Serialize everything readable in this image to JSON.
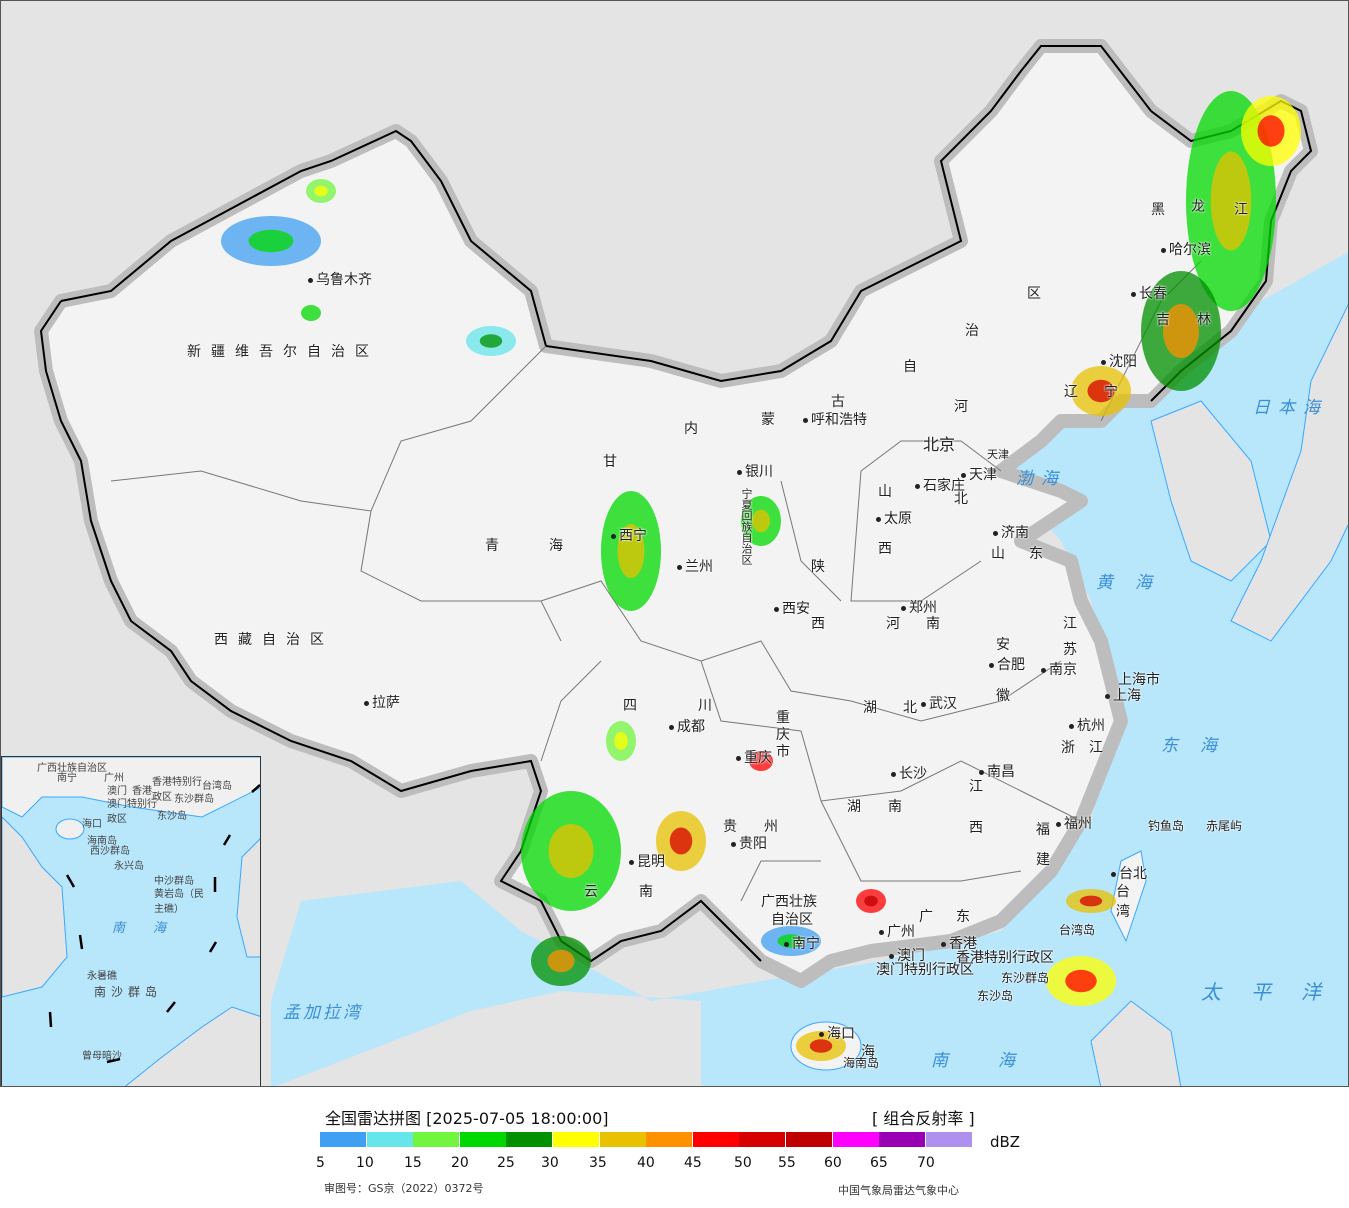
{
  "legend": {
    "title": "全国雷达拼图 [2025-07-05 18:00:00]",
    "product": "[ 组合反射率 ]",
    "unit": "dBZ",
    "colors": [
      "#3f9ff2",
      "#66e6ea",
      "#72f53f",
      "#00d900",
      "#009000",
      "#ffff00",
      "#e8c100",
      "#ff9000",
      "#ff0000",
      "#d60000",
      "#c00000",
      "#ff00ff",
      "#9800b4",
      "#ae90ee"
    ],
    "ticks": [
      "5",
      "10",
      "15",
      "20",
      "25",
      "30",
      "35",
      "40",
      "45",
      "50",
      "55",
      "60",
      "65",
      "70"
    ],
    "approval": "审图号：GS京（2022）0372号",
    "credit": "中国气象局雷达气象中心"
  },
  "colors": {
    "sea": "#b8e6fb",
    "land_china": "#f3f3f3",
    "land_other": "#e4e4e4",
    "border": "#000000",
    "rivers": "#39a8ff"
  },
  "map": {
    "provinces": [
      "新疆维吾尔自治区",
      "西藏自治区",
      "青海",
      "甘",
      "内",
      "蒙",
      "古",
      "自",
      "治",
      "区",
      "黑",
      "龙",
      "江",
      "吉",
      "林",
      "辽",
      "宁",
      "河",
      "北",
      "山",
      "西",
      "陕",
      "西",
      "河",
      "南",
      "山",
      "东",
      "江",
      "苏",
      "安",
      "徽",
      "浙",
      "江",
      "湖",
      "北",
      "湖",
      "南",
      "江",
      "西",
      "四",
      "川",
      "贵",
      "州",
      "云",
      "南",
      "广",
      "东",
      "广西壮族",
      "自治区",
      "重",
      "庆",
      "市",
      "福",
      "建",
      "台",
      "湾",
      "海",
      "南",
      "天津",
      "宁夏回族自治区",
      "上海市",
      "香港特别行政区",
      "澳门特别行政区"
    ],
    "cities": [
      "乌鲁木齐",
      "拉萨",
      "西宁",
      "兰州",
      "银川",
      "呼和浩特",
      "北京",
      "天津",
      "石家庄",
      "太原",
      "济南",
      "郑州",
      "西安",
      "成都",
      "重庆",
      "武汉",
      "合肥",
      "南京",
      "上海",
      "杭州",
      "长沙",
      "南昌",
      "贵阳",
      "昆明",
      "南宁",
      "广州",
      "香港",
      "澳门",
      "福州",
      "台北",
      "海口",
      "沈阳",
      "长春",
      "哈尔滨",
      "钓鱼岛",
      "赤尾屿",
      "台湾岛",
      "东沙群岛",
      "东沙岛",
      "海南岛"
    ],
    "seas": [
      "渤海",
      "黄海",
      "东海",
      "南海",
      "日本海",
      "太平洋",
      "孟加拉湾"
    ]
  },
  "inset": {
    "labels": [
      "广西壮族自治区",
      "南宁",
      "广州",
      "澳门",
      "香港",
      "香港特别行政区",
      "澳门特别行政区",
      "东沙群岛",
      "东沙岛",
      "海口",
      "海南岛",
      "西沙群岛",
      "永兴岛",
      "中沙群岛",
      "黄岩岛（民主礁）",
      "南海",
      "永暑礁",
      "南沙群岛",
      "曾母暗沙",
      "台湾岛"
    ]
  }
}
